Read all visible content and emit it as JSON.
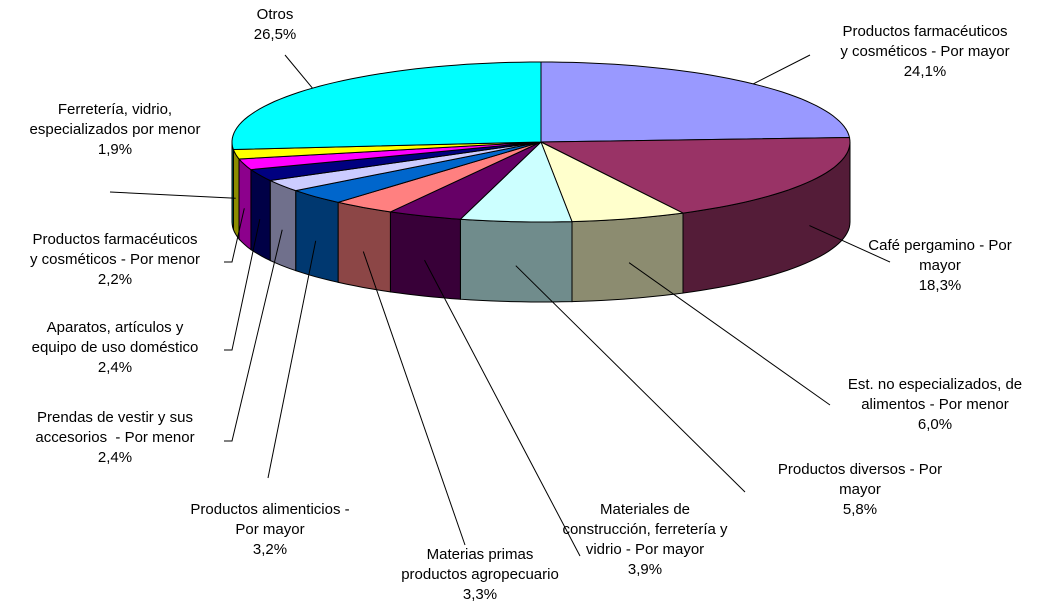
{
  "chart_data": {
    "type": "pie3d",
    "categories": [
      "Productos farmacéuticos\ny cosméticos - Por mayor",
      "Café pergamino - Por\nmayor",
      "Est. no especializados, de\nalimentos - Por menor",
      "Productos diversos - Por\nmayor",
      "Materiales de\nconstrucción, ferretería y\nvidrio - Por mayor",
      "Materias primas\nproductos agropecuario",
      "Productos alimenticios -\nPor mayor",
      "Prendas de vestir y sus\naccesorios  - Por menor",
      "Aparatos, artículos y\nequipo de uso doméstico",
      "Productos farmacéuticos\ny cosméticos - Por menor",
      "Ferretería, vidrio,\nespecializados por menor",
      "Otros"
    ],
    "values": [
      24.1,
      18.3,
      6.0,
      5.8,
      3.9,
      3.3,
      3.2,
      2.4,
      2.4,
      2.2,
      1.9,
      26.5
    ],
    "value_labels": [
      "24,1%",
      "18,3%",
      "6,0%",
      "5,8%",
      "3,9%",
      "3,3%",
      "3,2%",
      "2,4%",
      "2,4%",
      "2,2%",
      "1,9%",
      "26,5%"
    ],
    "colors": [
      "#9999FF",
      "#993366",
      "#FFFFCC",
      "#CCFFFF",
      "#660066",
      "#FF8080",
      "#0066CC",
      "#CCCCFF",
      "#000080",
      "#FF00FF",
      "#FFFF00",
      "#00FFFF"
    ]
  }
}
